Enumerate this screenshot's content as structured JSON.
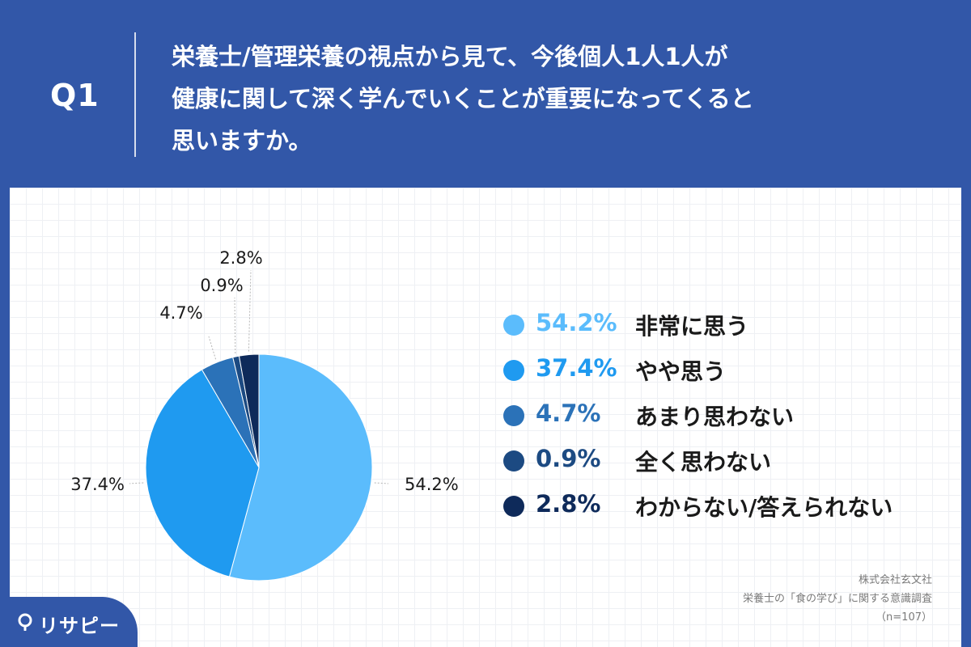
{
  "header": {
    "q_label": "Q1",
    "question_lines": [
      "栄養士/管理栄養の視点から見て、今後個人1人1人が",
      "健康に関して深く学んでいくことが重要になってくると",
      "思いますか。"
    ]
  },
  "chart_data": {
    "type": "pie",
    "title": "",
    "categories": [
      "非常に思う",
      "やや思う",
      "あまり思わない",
      "全く思わない",
      "わからない/答えられない"
    ],
    "values": [
      54.2,
      37.4,
      4.7,
      0.9,
      2.8
    ],
    "value_labels": [
      "54.2%",
      "37.4%",
      "4.7%",
      "0.9%",
      "2.8%"
    ],
    "colors": [
      "#5bbcfc",
      "#1f9af0",
      "#2b72b8",
      "#1c4a82",
      "#0e2a5a"
    ],
    "start_angle": "12 o'clock",
    "direction": "clockwise",
    "legend_position": "right"
  },
  "legend": {
    "items": [
      {
        "pct": "54.2%",
        "label": "非常に思う",
        "color": "#5bbcfc"
      },
      {
        "pct": "37.4%",
        "label": "やや思う",
        "color": "#1f9af0"
      },
      {
        "pct": "4.7%",
        "label": "あまり思わない",
        "color": "#2b72b8"
      },
      {
        "pct": "0.9%",
        "label": "全く思わない",
        "color": "#1c4a82"
      },
      {
        "pct": "2.8%",
        "label": "わからない/答えられない",
        "color": "#0e2a5a"
      }
    ]
  },
  "source": {
    "company": "株式会社玄文社",
    "survey": "栄養士の「食の学び」に関する意識調査",
    "sample": "（n=107）"
  },
  "logo": {
    "text": "リサピー",
    "icon": "location-pin-icon"
  },
  "colors": {
    "background": "#3257a8",
    "card": "#ffffff"
  }
}
